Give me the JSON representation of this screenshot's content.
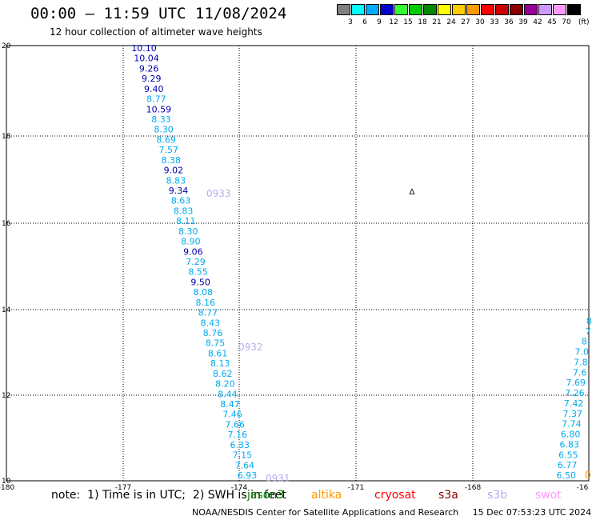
{
  "header": {
    "title": "00:00 – 11:59 UTC 11/08/2024",
    "subtitle": "12 hour collection of altimeter wave heights"
  },
  "legend": {
    "unit": "(ft)",
    "items": [
      {
        "label": "3",
        "color": "#808080"
      },
      {
        "label": "6",
        "color": "#00ffff"
      },
      {
        "label": "9",
        "color": "#00aaff"
      },
      {
        "label": "12",
        "color": "#0000cc"
      },
      {
        "label": "15",
        "color": "#33ff33"
      },
      {
        "label": "18",
        "color": "#00cc00"
      },
      {
        "label": "21",
        "color": "#008800"
      },
      {
        "label": "24",
        "color": "#ffff00"
      },
      {
        "label": "27",
        "color": "#ffcc00"
      },
      {
        "label": "30",
        "color": "#ff9900"
      },
      {
        "label": "33",
        "color": "#ff0000"
      },
      {
        "label": "36",
        "color": "#cc0000"
      },
      {
        "label": "39",
        "color": "#880000"
      },
      {
        "label": "42",
        "color": "#990099"
      },
      {
        "label": "45",
        "color": "#cc99ff"
      },
      {
        "label": "70",
        "color": "#ff99ff"
      },
      {
        "label": "",
        "color": "#000000"
      }
    ]
  },
  "axes": {
    "lon_ticks": [
      "-180",
      "-177",
      "-174",
      "-171",
      "-168",
      "-16"
    ],
    "lat_ticks": [
      "20",
      "18",
      "16",
      "14",
      "12",
      "10"
    ]
  },
  "track_a": {
    "color_light": "#00aaee",
    "color_dark": "#0000aa",
    "values": [
      {
        "text": "10.10",
        "dark": true
      },
      {
        "text": "10.04",
        "dark": true
      },
      {
        "text": "9.26",
        "dark": true
      },
      {
        "text": "9.29",
        "dark": true
      },
      {
        "text": "9.40",
        "dark": true
      },
      {
        "text": "8.77",
        "dark": false
      },
      {
        "text": "10.59",
        "dark": true
      },
      {
        "text": "8.33",
        "dark": false
      },
      {
        "text": "8.30",
        "dark": false
      },
      {
        "text": "8.69",
        "dark": false
      },
      {
        "text": "7.57",
        "dark": false
      },
      {
        "text": "8.38",
        "dark": false
      },
      {
        "text": "9.02",
        "dark": true
      },
      {
        "text": "8.83",
        "dark": false
      },
      {
        "text": "9.34",
        "dark": true
      },
      {
        "text": "8.63",
        "dark": false
      },
      {
        "text": "8.83",
        "dark": false
      },
      {
        "text": "8.11",
        "dark": false
      },
      {
        "text": "8.30",
        "dark": false
      },
      {
        "text": "8.90",
        "dark": false
      },
      {
        "text": "9.06",
        "dark": true
      },
      {
        "text": "7.29",
        "dark": false
      },
      {
        "text": "8.55",
        "dark": false
      },
      {
        "text": "9.50",
        "dark": true
      },
      {
        "text": "8.08",
        "dark": false
      },
      {
        "text": "8.16",
        "dark": false
      },
      {
        "text": "8.77",
        "dark": false
      },
      {
        "text": "8.43",
        "dark": false
      },
      {
        "text": "8.76",
        "dark": false
      },
      {
        "text": "8.75",
        "dark": false
      },
      {
        "text": "8.61",
        "dark": false
      },
      {
        "text": "8.13",
        "dark": false
      },
      {
        "text": "8.62",
        "dark": false
      },
      {
        "text": "8.20",
        "dark": false
      },
      {
        "text": "8.44",
        "dark": false
      },
      {
        "text": "8.47",
        "dark": false
      },
      {
        "text": "7.46",
        "dark": false
      },
      {
        "text": "7.66",
        "dark": false
      },
      {
        "text": "7.16",
        "dark": false
      },
      {
        "text": "6.33",
        "dark": false
      },
      {
        "text": "7.15",
        "dark": false
      },
      {
        "text": "7.64",
        "dark": false
      },
      {
        "text": "6.93",
        "dark": false
      }
    ],
    "time_labels": [
      "0933",
      "0932",
      "0931"
    ],
    "time_color": "#bbaaee"
  },
  "track_b": {
    "color": "#00aaee",
    "values": [
      "8",
      "7",
      "8.",
      "7.0",
      "7.8",
      "7.6",
      "7.69",
      "7.26",
      "7.42",
      "7.37",
      "7.74",
      "6.80",
      "6.83",
      "6.55",
      "6.77",
      "6.50"
    ],
    "end_marker": "0",
    "end_marker_color": "#ff9900"
  },
  "station_marker": "Δ",
  "footer": {
    "note": "note:  1) Time is in UTC;  2) SWH is in feet",
    "missions": [
      {
        "name": "jason3",
        "color": "#008800"
      },
      {
        "name": "altika",
        "color": "#ff9900"
      },
      {
        "name": "cryosat",
        "color": "#ff0000"
      },
      {
        "name": "s3a",
        "color": "#880000"
      },
      {
        "name": "s3b",
        "color": "#bbaaee"
      },
      {
        "name": "swot",
        "color": "#ff99ff"
      }
    ],
    "credit": "NOAA/NESDIS Center for Satellite Applications and Research     15 Dec 07:53:23 UTC 2024"
  }
}
